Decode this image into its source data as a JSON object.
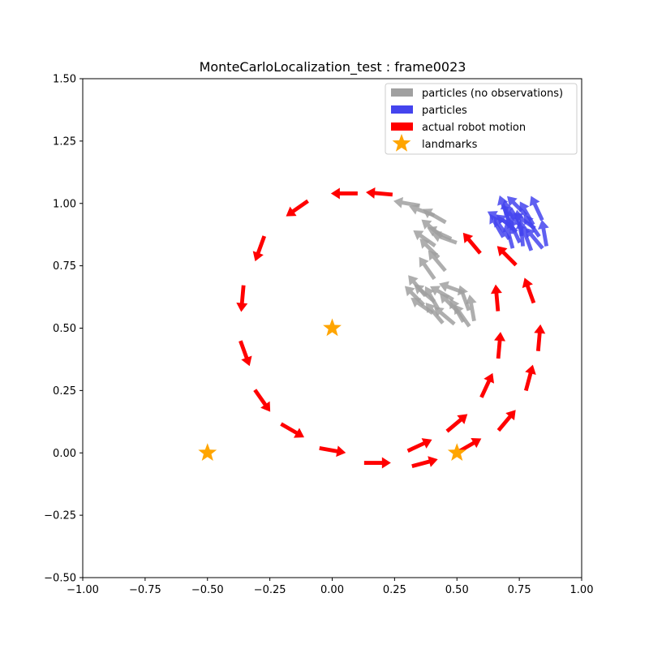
{
  "chart_data": {
    "type": "scatter",
    "title": "MonteCarloLocalization_test : frame0023",
    "xlabel": "",
    "ylabel": "",
    "xlim": [
      -1.0,
      1.0
    ],
    "ylim": [
      -0.5,
      1.5
    ],
    "xticks": [
      "−1.00",
      "−0.75",
      "−0.50",
      "−0.25",
      "0.00",
      "0.25",
      "0.50",
      "0.75",
      "1.00"
    ],
    "xtick_values": [
      -1.0,
      -0.75,
      -0.5,
      -0.25,
      0.0,
      0.25,
      0.5,
      0.75,
      1.0
    ],
    "yticks": [
      "−0.50",
      "−0.25",
      "0.00",
      "0.25",
      "0.50",
      "0.75",
      "1.00",
      "1.25",
      "1.50"
    ],
    "ytick_values": [
      -0.5,
      -0.25,
      0.0,
      0.25,
      0.5,
      0.75,
      1.0,
      1.25,
      1.5
    ],
    "grid": false,
    "legend_position": "top-right",
    "legend": [
      {
        "label": "particles (no observations)",
        "color": "#a0a0a0",
        "kind": "patch"
      },
      {
        "label": "particles",
        "color": "#4444ee",
        "kind": "patch"
      },
      {
        "label": "actual robot motion",
        "color": "#ff0000",
        "kind": "patch"
      },
      {
        "label": "landmarks",
        "color": "#ffa500",
        "kind": "star"
      }
    ],
    "landmarks": {
      "name": "landmarks",
      "color": "#ffa500",
      "points": [
        [
          0.0,
          0.5
        ],
        [
          -0.5,
          0.0
        ],
        [
          0.5,
          0.0
        ]
      ]
    },
    "robot_motion": {
      "name": "actual robot motion",
      "color": "#ff0000",
      "arrows": [
        [
          0.05,
          1.04,
          180
        ],
        [
          -0.14,
          0.98,
          215
        ],
        [
          -0.29,
          0.82,
          250
        ],
        [
          -0.36,
          0.62,
          265
        ],
        [
          -0.35,
          0.4,
          290
        ],
        [
          -0.28,
          0.21,
          305
        ],
        [
          -0.16,
          0.09,
          330
        ],
        [
          0.0,
          0.01,
          350
        ],
        [
          0.18,
          -0.04,
          0
        ],
        [
          0.37,
          -0.04,
          15
        ],
        [
          0.55,
          0.03,
          30
        ],
        [
          0.7,
          0.13,
          50
        ],
        [
          0.79,
          0.3,
          75
        ],
        [
          0.83,
          0.46,
          85
        ],
        [
          0.79,
          0.65,
          110
        ],
        [
          0.7,
          0.79,
          135
        ],
        [
          0.56,
          0.84,
          130
        ],
        [
          0.66,
          0.62,
          95
        ],
        [
          0.67,
          0.43,
          85
        ],
        [
          0.62,
          0.27,
          65
        ],
        [
          0.5,
          0.12,
          40
        ],
        [
          0.35,
          0.03,
          25
        ],
        [
          0.19,
          1.04,
          175
        ]
      ]
    },
    "particles_no_obs": {
      "name": "particles (no observations)",
      "color": "#a0a0a0",
      "arrows": [
        [
          0.3,
          1.0,
          170
        ],
        [
          0.36,
          0.97,
          160
        ],
        [
          0.41,
          0.95,
          150
        ],
        [
          0.4,
          0.9,
          140
        ],
        [
          0.43,
          0.88,
          155
        ],
        [
          0.37,
          0.86,
          145
        ],
        [
          0.45,
          0.86,
          160
        ],
        [
          0.39,
          0.82,
          135
        ],
        [
          0.42,
          0.77,
          130
        ],
        [
          0.38,
          0.74,
          125
        ],
        [
          0.34,
          0.67,
          130
        ],
        [
          0.37,
          0.64,
          140
        ],
        [
          0.4,
          0.62,
          120
        ],
        [
          0.44,
          0.64,
          150
        ],
        [
          0.47,
          0.6,
          135
        ],
        [
          0.36,
          0.59,
          145
        ],
        [
          0.5,
          0.57,
          120
        ],
        [
          0.53,
          0.62,
          110
        ],
        [
          0.56,
          0.58,
          100
        ],
        [
          0.41,
          0.56,
          130
        ],
        [
          0.45,
          0.55,
          140
        ],
        [
          0.48,
          0.66,
          160
        ],
        [
          0.33,
          0.63,
          135
        ],
        [
          0.52,
          0.55,
          125
        ]
      ]
    },
    "particles": {
      "name": "particles",
      "color": "#4444ee",
      "arrows": [
        [
          0.69,
          0.98,
          110
        ],
        [
          0.72,
          0.95,
          130
        ],
        [
          0.75,
          0.92,
          100
        ],
        [
          0.78,
          0.96,
          120
        ],
        [
          0.7,
          0.92,
          140
        ],
        [
          0.73,
          0.89,
          115
        ],
        [
          0.76,
          0.88,
          95
        ],
        [
          0.8,
          0.91,
          125
        ],
        [
          0.67,
          0.94,
          150
        ],
        [
          0.71,
          0.87,
          105
        ],
        [
          0.82,
          0.98,
          115
        ],
        [
          0.74,
          0.99,
          135
        ],
        [
          0.78,
          0.86,
          110
        ],
        [
          0.68,
          0.9,
          125
        ],
        [
          0.85,
          0.88,
          100
        ],
        [
          0.72,
          0.93,
          90
        ],
        [
          0.77,
          0.93,
          145
        ],
        [
          0.81,
          0.86,
          130
        ],
        [
          0.66,
          0.91,
          120
        ],
        [
          0.7,
          0.96,
          100
        ]
      ]
    }
  }
}
